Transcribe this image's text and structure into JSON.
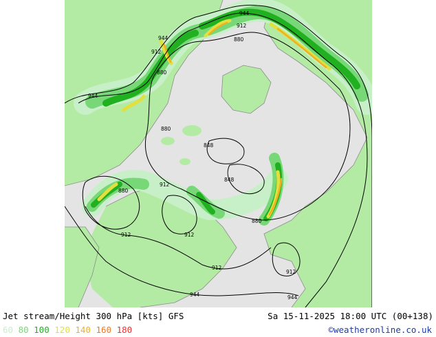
{
  "title": "Jet stream/Height 300 hPa [kts] GFS",
  "datetime": "Sa 15-11-2025 18:00 UTC (00+138)",
  "credit": "©weatheronline.co.uk",
  "legend": [
    {
      "label": "60",
      "color": "#c8f0c8"
    },
    {
      "label": "80",
      "color": "#78d878"
    },
    {
      "label": "100",
      "color": "#20b020"
    },
    {
      "label": "120",
      "color": "#e0e040"
    },
    {
      "label": "140",
      "color": "#f0b020"
    },
    {
      "label": "160",
      "color": "#f07820"
    },
    {
      "label": "180",
      "color": "#f03030"
    }
  ],
  "contour_labels": [
    "944",
    "912",
    "880",
    "848"
  ],
  "colors": {
    "land": "#b4eba4",
    "sea": "#e4e4e4",
    "jet_60": "#c8f0c8",
    "jet_80": "#78d878",
    "jet_100": "#20b020",
    "jet_120": "#e0e040",
    "jet_140": "#f0b020",
    "contour": "#000000",
    "coast": "#8c8c8c"
  }
}
